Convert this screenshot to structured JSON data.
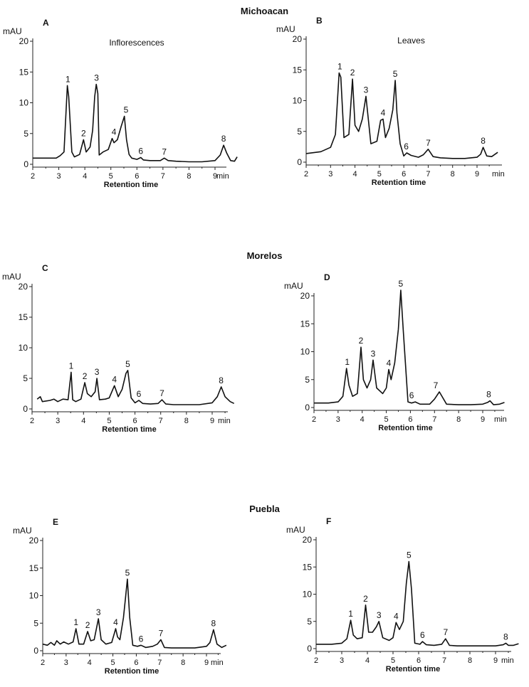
{
  "regions": [
    "Michoacan",
    "Morelos",
    "Puebla"
  ],
  "chart_data": [
    {
      "panel_label": "A",
      "region": "Michoacan",
      "tissue_label": "Inflorescences",
      "type": "line",
      "ylabel": "mAU",
      "xlabel": "Retention time",
      "x_unit": "min",
      "xlim": [
        2,
        10
      ],
      "ylim": [
        0,
        20
      ],
      "x_ticks": [
        2,
        3,
        4,
        5,
        6,
        7,
        8,
        9
      ],
      "y_ticks": [
        0,
        5,
        10,
        15,
        20
      ],
      "baseline": 1.0,
      "x": [
        2.0,
        2.9,
        3.05,
        3.2,
        3.33,
        3.38,
        3.5,
        3.6,
        3.8,
        3.95,
        4.05,
        4.2,
        4.3,
        4.38,
        4.44,
        4.5,
        4.55,
        4.7,
        4.9,
        5.05,
        5.12,
        5.25,
        5.4,
        5.52,
        5.6,
        5.7,
        5.8,
        6.0,
        6.15,
        6.25,
        6.5,
        6.9,
        7.05,
        7.2,
        7.5,
        8.0,
        8.5,
        9.0,
        9.2,
        9.33,
        9.45,
        9.6,
        9.75,
        9.85
      ],
      "y": [
        1.0,
        1.0,
        1.4,
        2.0,
        12.8,
        11.0,
        2.0,
        1.2,
        1.6,
        4.0,
        2.0,
        2.8,
        5.5,
        11.0,
        13.0,
        11.5,
        1.5,
        2.0,
        2.4,
        4.2,
        3.5,
        4.0,
        6.2,
        7.8,
        4.0,
        1.6,
        1.0,
        0.8,
        1.1,
        0.7,
        0.6,
        0.6,
        1.0,
        0.6,
        0.5,
        0.4,
        0.4,
        0.6,
        1.5,
        3.1,
        1.8,
        0.6,
        0.5,
        1.2
      ],
      "peaks": [
        {
          "label": "1",
          "x": 3.35,
          "y": 12.8
        },
        {
          "label": "2",
          "x": 3.95,
          "y": 4.0
        },
        {
          "label": "3",
          "x": 4.45,
          "y": 13.0
        },
        {
          "label": "4",
          "x": 5.12,
          "y": 4.2
        },
        {
          "label": "5",
          "x": 5.58,
          "y": 7.8
        },
        {
          "label": "6",
          "x": 6.15,
          "y": 1.1
        },
        {
          "label": "7",
          "x": 7.05,
          "y": 1.0
        },
        {
          "label": "8",
          "x": 9.33,
          "y": 3.1
        }
      ]
    },
    {
      "panel_label": "B",
      "region": "Michoacan",
      "tissue_label": "Leaves",
      "type": "line",
      "ylabel": "mAU",
      "xlabel": "Retention time",
      "x_unit": "min",
      "xlim": [
        2,
        10
      ],
      "ylim": [
        0,
        20
      ],
      "x_ticks": [
        2,
        3,
        4,
        5,
        6,
        7,
        8,
        9
      ],
      "y_ticks": [
        0,
        5,
        10,
        15,
        20
      ],
      "baseline": 1.4,
      "x": [
        2.0,
        2.6,
        3.0,
        3.2,
        3.35,
        3.42,
        3.55,
        3.75,
        3.9,
        4.0,
        4.15,
        4.3,
        4.45,
        4.52,
        4.65,
        4.9,
        5.05,
        5.15,
        5.25,
        5.4,
        5.55,
        5.65,
        5.72,
        5.85,
        6.0,
        6.12,
        6.3,
        6.6,
        6.8,
        7.0,
        7.2,
        7.5,
        8.0,
        8.5,
        9.0,
        9.15,
        9.25,
        9.4,
        9.6,
        9.85
      ],
      "y": [
        1.4,
        1.7,
        2.4,
        4.5,
        14.5,
        13.8,
        4.0,
        4.5,
        13.5,
        6.0,
        5.0,
        7.0,
        10.7,
        8.0,
        3.0,
        3.4,
        6.8,
        7.0,
        4.0,
        5.5,
        8.5,
        13.3,
        8.0,
        3.0,
        1.0,
        1.5,
        1.1,
        0.8,
        1.2,
        2.1,
        0.9,
        0.7,
        0.6,
        0.6,
        0.8,
        1.3,
        2.4,
        1.0,
        0.9,
        1.6
      ],
      "peaks": [
        {
          "label": "1",
          "x": 3.38,
          "y": 14.5
        },
        {
          "label": "2",
          "x": 3.9,
          "y": 13.5
        },
        {
          "label": "3",
          "x": 4.45,
          "y": 10.7
        },
        {
          "label": "4",
          "x": 5.15,
          "y": 7.0
        },
        {
          "label": "5",
          "x": 5.65,
          "y": 13.3
        },
        {
          "label": "6",
          "x": 6.1,
          "y": 1.5
        },
        {
          "label": "7",
          "x": 7.0,
          "y": 2.1
        },
        {
          "label": "8",
          "x": 9.25,
          "y": 2.4
        }
      ]
    },
    {
      "panel_label": "C",
      "region": "Morelos",
      "tissue_label": "",
      "type": "line",
      "ylabel": "mAU",
      "xlabel": "Retention time",
      "x_unit": "min",
      "xlim": [
        2,
        10
      ],
      "ylim": [
        0,
        20
      ],
      "x_ticks": [
        2,
        3,
        4,
        5,
        6,
        7,
        8,
        9
      ],
      "y_ticks": [
        0,
        5,
        10,
        15,
        20
      ],
      "baseline": 1.3,
      "x": [
        2.2,
        2.32,
        2.4,
        2.7,
        2.85,
        3.0,
        3.2,
        3.4,
        3.52,
        3.58,
        3.7,
        3.9,
        4.05,
        4.15,
        4.3,
        4.45,
        4.52,
        4.62,
        4.85,
        5.0,
        5.2,
        5.35,
        5.5,
        5.65,
        5.72,
        5.85,
        6.0,
        6.15,
        6.3,
        6.6,
        6.9,
        7.05,
        7.2,
        7.5,
        8.0,
        8.5,
        9.0,
        9.2,
        9.35,
        9.5,
        9.7,
        9.85
      ],
      "y": [
        1.6,
        2.0,
        1.2,
        1.4,
        1.6,
        1.2,
        1.6,
        1.5,
        6.0,
        1.5,
        1.2,
        1.6,
        4.3,
        2.5,
        2.0,
        2.8,
        5.0,
        1.5,
        1.6,
        1.8,
        3.8,
        2.0,
        3.2,
        5.8,
        6.3,
        1.8,
        1.0,
        1.4,
        0.9,
        0.8,
        0.9,
        1.5,
        0.8,
        0.7,
        0.7,
        0.7,
        1.0,
        2.0,
        3.6,
        2.0,
        1.2,
        0.9
      ],
      "peaks": [
        {
          "label": "1",
          "x": 3.52,
          "y": 6.0
        },
        {
          "label": "2",
          "x": 4.05,
          "y": 4.3
        },
        {
          "label": "3",
          "x": 4.52,
          "y": 5.0
        },
        {
          "label": "4",
          "x": 5.2,
          "y": 3.8
        },
        {
          "label": "5",
          "x": 5.72,
          "y": 6.3
        },
        {
          "label": "6",
          "x": 6.15,
          "y": 1.4
        },
        {
          "label": "7",
          "x": 7.05,
          "y": 1.5
        },
        {
          "label": "8",
          "x": 9.35,
          "y": 3.6
        }
      ]
    },
    {
      "panel_label": "D",
      "region": "Morelos",
      "tissue_label": "",
      "type": "line",
      "ylabel": "mAU",
      "xlabel": "Retention time",
      "x_unit": "min",
      "xlim": [
        2,
        10
      ],
      "ylim": [
        0,
        20
      ],
      "x_ticks": [
        2,
        3,
        4,
        5,
        6,
        7,
        8,
        9
      ],
      "y_ticks": [
        0,
        5,
        10,
        15,
        20
      ],
      "baseline": 0.8,
      "x": [
        2.0,
        2.6,
        3.0,
        3.2,
        3.35,
        3.45,
        3.6,
        3.8,
        3.95,
        4.05,
        4.2,
        4.35,
        4.45,
        4.6,
        4.85,
        5.0,
        5.1,
        5.2,
        5.35,
        5.5,
        5.6,
        5.7,
        5.9,
        6.05,
        6.2,
        6.4,
        6.8,
        7.0,
        7.2,
        7.5,
        8.0,
        8.5,
        9.0,
        9.2,
        9.3,
        9.45,
        9.7,
        9.9
      ],
      "y": [
        0.8,
        0.8,
        1.0,
        2.0,
        7.0,
        4.0,
        2.0,
        2.5,
        10.8,
        5.0,
        3.5,
        5.0,
        8.5,
        3.5,
        2.5,
        3.5,
        6.8,
        5.0,
        8.0,
        14.0,
        21.0,
        14.0,
        1.0,
        0.8,
        1.0,
        0.6,
        0.6,
        1.5,
        2.8,
        0.6,
        0.5,
        0.5,
        0.6,
        0.9,
        1.2,
        0.5,
        0.6,
        0.9
      ],
      "peaks": [
        {
          "label": "1",
          "x": 3.38,
          "y": 7.0
        },
        {
          "label": "2",
          "x": 3.95,
          "y": 10.8
        },
        {
          "label": "3",
          "x": 4.45,
          "y": 8.5
        },
        {
          "label": "4",
          "x": 5.1,
          "y": 6.8
        },
        {
          "label": "5",
          "x": 5.6,
          "y": 21.0
        },
        {
          "label": "6",
          "x": 6.05,
          "y": 1.0
        },
        {
          "label": "7",
          "x": 7.05,
          "y": 2.8
        },
        {
          "label": "8",
          "x": 9.25,
          "y": 1.2
        }
      ]
    },
    {
      "panel_label": "E",
      "region": "Puebla",
      "tissue_label": "",
      "type": "line",
      "ylabel": "mAU",
      "xlabel": "Retention time",
      "x_unit": "min",
      "xlim": [
        2,
        10
      ],
      "ylim": [
        0,
        20
      ],
      "x_ticks": [
        2,
        3,
        4,
        5,
        6,
        7,
        8,
        9
      ],
      "y_ticks": [
        0,
        5,
        10,
        15,
        20
      ],
      "baseline": 1.2,
      "x": [
        2.0,
        2.2,
        2.35,
        2.5,
        2.6,
        2.75,
        2.9,
        3.1,
        3.3,
        3.42,
        3.55,
        3.75,
        3.92,
        4.05,
        4.2,
        4.38,
        4.5,
        4.7,
        4.95,
        5.12,
        5.2,
        5.3,
        5.45,
        5.55,
        5.62,
        5.72,
        5.85,
        6.05,
        6.2,
        6.4,
        6.7,
        6.9,
        7.05,
        7.2,
        7.5,
        8.0,
        8.5,
        9.0,
        9.15,
        9.3,
        9.45,
        9.65,
        9.85
      ],
      "y": [
        1.2,
        1.0,
        1.5,
        1.0,
        1.8,
        1.2,
        1.6,
        1.2,
        1.6,
        4.0,
        1.2,
        1.2,
        3.5,
        1.8,
        2.0,
        5.8,
        2.0,
        1.2,
        1.5,
        4.0,
        2.5,
        2.0,
        6.0,
        10.0,
        13.0,
        6.0,
        1.0,
        0.8,
        1.0,
        0.6,
        0.8,
        1.2,
        2.0,
        0.6,
        0.5,
        0.5,
        0.5,
        0.8,
        1.5,
        3.8,
        1.2,
        0.6,
        1.0
      ],
      "peaks": [
        {
          "label": "1",
          "x": 3.42,
          "y": 4.0
        },
        {
          "label": "2",
          "x": 3.92,
          "y": 3.5
        },
        {
          "label": "3",
          "x": 4.38,
          "y": 5.8
        },
        {
          "label": "4",
          "x": 5.12,
          "y": 4.0
        },
        {
          "label": "5",
          "x": 5.62,
          "y": 13.0
        },
        {
          "label": "6",
          "x": 6.2,
          "y": 1.0
        },
        {
          "label": "7",
          "x": 7.05,
          "y": 2.0
        },
        {
          "label": "8",
          "x": 9.3,
          "y": 3.8
        }
      ]
    },
    {
      "panel_label": "F",
      "region": "Puebla",
      "tissue_label": "",
      "type": "line",
      "ylabel": "mAU",
      "xlabel": "Retention time",
      "x_unit": "min",
      "xlim": [
        2,
        10
      ],
      "ylim": [
        0,
        20
      ],
      "x_ticks": [
        2,
        3,
        4,
        5,
        6,
        7,
        8,
        9
      ],
      "y_ticks": [
        0,
        5,
        10,
        15,
        20
      ],
      "baseline": 0.8,
      "x": [
        2.0,
        2.6,
        3.0,
        3.2,
        3.35,
        3.45,
        3.6,
        3.8,
        3.93,
        4.05,
        4.2,
        4.35,
        4.45,
        4.6,
        4.85,
        5.0,
        5.12,
        5.25,
        5.4,
        5.52,
        5.62,
        5.72,
        5.85,
        6.05,
        6.15,
        6.3,
        6.6,
        6.9,
        7.05,
        7.2,
        7.5,
        8.0,
        8.5,
        9.0,
        9.3,
        9.4,
        9.5,
        9.7,
        9.9
      ],
      "y": [
        0.8,
        0.8,
        1.0,
        1.8,
        5.2,
        2.5,
        1.8,
        2.0,
        8.0,
        3.0,
        3.0,
        4.0,
        5.0,
        2.0,
        1.5,
        2.0,
        4.8,
        3.5,
        5.0,
        12.0,
        16.0,
        11.0,
        1.0,
        0.8,
        1.3,
        0.7,
        0.6,
        0.8,
        1.8,
        0.6,
        0.5,
        0.5,
        0.5,
        0.5,
        0.7,
        1.0,
        0.6,
        0.6,
        0.9
      ],
      "peaks": [
        {
          "label": "1",
          "x": 3.35,
          "y": 5.2
        },
        {
          "label": "2",
          "x": 3.93,
          "y": 8.0
        },
        {
          "label": "3",
          "x": 4.45,
          "y": 5.0
        },
        {
          "label": "4",
          "x": 5.12,
          "y": 4.8
        },
        {
          "label": "5",
          "x": 5.62,
          "y": 16.0
        },
        {
          "label": "6",
          "x": 6.15,
          "y": 1.3
        },
        {
          "label": "7",
          "x": 7.05,
          "y": 1.8
        },
        {
          "label": "8",
          "x": 9.4,
          "y": 1.0
        }
      ]
    }
  ]
}
